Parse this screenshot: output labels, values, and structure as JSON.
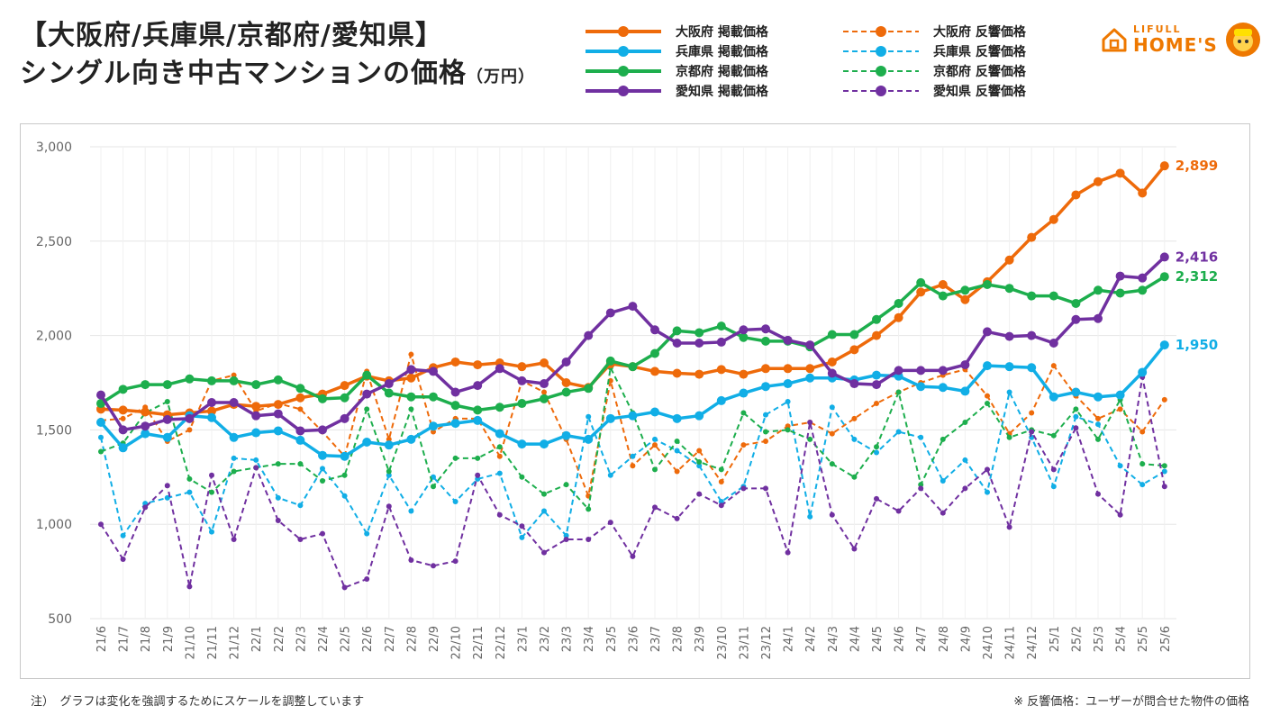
{
  "title": {
    "line1": "【大阪府/兵庫県/京都府/愛知県】",
    "line2": "シングル向き中古マンションの価格",
    "unit": "（万円）"
  },
  "logo": {
    "top": "LIFULL",
    "bottom": "HOME'S"
  },
  "notes": {
    "left": "注）　グラフは変化を強調するためにスケールを調整しています",
    "right": "※ 反響価格：ユーザーが問合せた物件の価格"
  },
  "chart_data": {
    "type": "line",
    "ylim": [
      500,
      3000
    ],
    "yticks": [
      "3,000",
      "2,500",
      "2,000",
      "1,500",
      "1,000",
      "500"
    ],
    "ytick_values": [
      3000,
      2500,
      2000,
      1500,
      1000,
      500
    ],
    "grid": true,
    "legend_position": "top",
    "categories": [
      "21/6",
      "21/7",
      "21/8",
      "21/9",
      "21/10",
      "21/11",
      "21/12",
      "22/1",
      "22/2",
      "22/3",
      "22/4",
      "22/5",
      "22/6",
      "22/7",
      "22/8",
      "22/9",
      "22/10",
      "22/11",
      "22/12",
      "23/1",
      "23/2",
      "23/3",
      "23/4",
      "23/5",
      "23/6",
      "23/7",
      "23/8",
      "23/9",
      "23/10",
      "23/11",
      "23/12",
      "24/1",
      "24/2",
      "24/3",
      "24/4",
      "24/5",
      "24/6",
      "24/7",
      "24/8",
      "24/9",
      "24/10",
      "24/11",
      "24/12",
      "25/1",
      "25/2",
      "25/3",
      "25/4",
      "25/5",
      "25/6"
    ],
    "series": [
      {
        "name": "大阪府 掲載価格",
        "color": "#EE6A0A",
        "style": "solid",
        "end_label": "2,899",
        "values": [
          1610,
          1605,
          1595,
          1580,
          1590,
          1600,
          1635,
          1625,
          1635,
          1670,
          1690,
          1735,
          1785,
          1760,
          1775,
          1830,
          1860,
          1845,
          1855,
          1835,
          1855,
          1750,
          1725,
          1850,
          1835,
          1810,
          1800,
          1795,
          1820,
          1795,
          1825,
          1825,
          1825,
          1860,
          1925,
          2000,
          2095,
          2230,
          2270,
          2190,
          2285,
          2400,
          2520,
          2615,
          2745,
          2815,
          2860,
          2755,
          2899
        ]
      },
      {
        "name": "兵庫県 掲載価格",
        "color": "#11AEE6",
        "style": "solid",
        "end_label": "1,950",
        "values": [
          1540,
          1405,
          1480,
          1460,
          1575,
          1565,
          1460,
          1485,
          1495,
          1445,
          1365,
          1360,
          1435,
          1420,
          1450,
          1520,
          1535,
          1550,
          1480,
          1425,
          1425,
          1470,
          1450,
          1560,
          1575,
          1595,
          1560,
          1575,
          1655,
          1695,
          1730,
          1745,
          1775,
          1775,
          1765,
          1790,
          1785,
          1730,
          1725,
          1705,
          1840,
          1835,
          1830,
          1675,
          1700,
          1675,
          1685,
          1805,
          1950
        ]
      },
      {
        "name": "京都府 掲載価格",
        "color": "#1DAE4D",
        "style": "solid",
        "end_label": "2,312",
        "values": [
          1640,
          1715,
          1740,
          1740,
          1770,
          1760,
          1760,
          1740,
          1765,
          1720,
          1665,
          1670,
          1790,
          1695,
          1675,
          1675,
          1630,
          1605,
          1620,
          1640,
          1665,
          1700,
          1720,
          1865,
          1835,
          1905,
          2025,
          2015,
          2050,
          1990,
          1970,
          1970,
          1940,
          2005,
          2005,
          2085,
          2170,
          2280,
          2210,
          2240,
          2270,
          2250,
          2210,
          2210,
          2170,
          2240,
          2225,
          2240,
          2312
        ]
      },
      {
        "name": "愛知県 掲載価格",
        "color": "#7030A0",
        "style": "solid",
        "end_label": "2,416",
        "values": [
          1685,
          1500,
          1520,
          1555,
          1560,
          1645,
          1645,
          1575,
          1585,
          1495,
          1500,
          1560,
          1690,
          1745,
          1820,
          1810,
          1700,
          1735,
          1825,
          1760,
          1745,
          1860,
          2000,
          2120,
          2155,
          2030,
          1960,
          1960,
          1965,
          2030,
          2035,
          1975,
          1950,
          1800,
          1745,
          1740,
          1815,
          1815,
          1815,
          1845,
          2020,
          1995,
          2000,
          1960,
          2085,
          2090,
          2315,
          2305,
          2416
        ]
      },
      {
        "name": "大阪府 反響価格",
        "color": "#EE6A0A",
        "style": "dashed",
        "values": [
          1550,
          1560,
          1620,
          1440,
          1500,
          1760,
          1790,
          1600,
          1640,
          1610,
          1490,
          1360,
          1810,
          1450,
          1900,
          1490,
          1560,
          1560,
          1360,
          1760,
          1700,
          1450,
          1150,
          1760,
          1310,
          1420,
          1280,
          1390,
          1225,
          1420,
          1440,
          1520,
          1540,
          1480,
          1560,
          1640,
          1700,
          1750,
          1790,
          1820,
          1680,
          1480,
          1590,
          1840,
          1680,
          1560,
          1610,
          1490,
          1660
        ]
      },
      {
        "name": "兵庫県 反響価格",
        "color": "#11AEE6",
        "style": "dashed",
        "values": [
          1460,
          940,
          1110,
          1140,
          1170,
          960,
          1350,
          1340,
          1140,
          1100,
          1295,
          1150,
          950,
          1260,
          1070,
          1250,
          1120,
          1240,
          1270,
          930,
          1070,
          940,
          1570,
          1260,
          1360,
          1450,
          1390,
          1310,
          1120,
          1200,
          1580,
          1650,
          1040,
          1620,
          1450,
          1380,
          1490,
          1460,
          1230,
          1340,
          1170,
          1700,
          1460,
          1200,
          1570,
          1530,
          1310,
          1210,
          1280
        ]
      },
      {
        "name": "京都府 反響価格",
        "color": "#1DAE4D",
        "style": "dashed",
        "values": [
          1385,
          1430,
          1590,
          1650,
          1240,
          1170,
          1280,
          1300,
          1320,
          1320,
          1230,
          1260,
          1610,
          1280,
          1610,
          1200,
          1350,
          1350,
          1410,
          1250,
          1160,
          1210,
          1080,
          1830,
          1590,
          1290,
          1440,
          1330,
          1290,
          1590,
          1490,
          1500,
          1450,
          1320,
          1250,
          1410,
          1700,
          1210,
          1450,
          1540,
          1640,
          1460,
          1500,
          1470,
          1610,
          1450,
          1660,
          1320,
          1310
        ]
      },
      {
        "name": "愛知県 反響価格",
        "color": "#7030A0",
        "style": "dashed",
        "values": [
          1000,
          815,
          1090,
          1205,
          670,
          1260,
          920,
          1300,
          1020,
          920,
          950,
          665,
          710,
          1095,
          810,
          780,
          805,
          1260,
          1050,
          990,
          850,
          920,
          920,
          1010,
          830,
          1090,
          1030,
          1160,
          1100,
          1190,
          1190,
          850,
          1540,
          1050,
          870,
          1135,
          1070,
          1190,
          1060,
          1190,
          1290,
          985,
          1490,
          1290,
          1510,
          1160,
          1050,
          1780,
          1200
        ]
      }
    ]
  }
}
